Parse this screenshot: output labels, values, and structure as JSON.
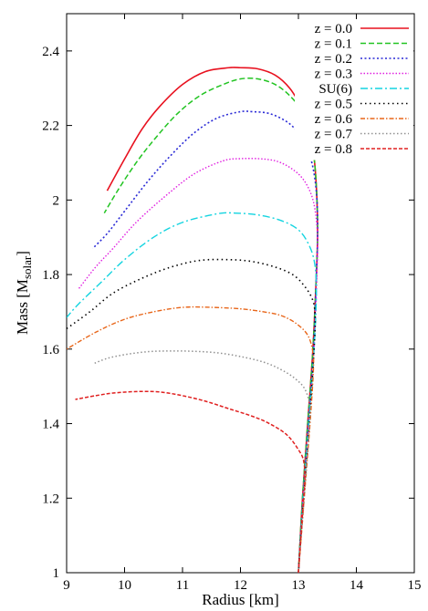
{
  "chart_data": {
    "type": "line",
    "title": "",
    "xlabel": "Radius  [km]",
    "ylabel_main": "Mass  [M",
    "ylabel_sub": "solar",
    "ylabel_close": "]",
    "xlim": [
      9,
      15
    ],
    "ylim": [
      1,
      2.5
    ],
    "xticks": [
      9,
      10,
      11,
      12,
      13,
      14,
      15
    ],
    "yticks": [
      1,
      1.2,
      1.4,
      1.6,
      1.8,
      2,
      2.2,
      2.4
    ],
    "xtick_labels": [
      "9",
      "10",
      "11",
      "12",
      "13",
      "14",
      "15"
    ],
    "ytick_labels": [
      "1",
      "1.2",
      "1.4",
      "1.6",
      "1.8",
      "2",
      "2.2",
      "2.4"
    ],
    "grid": false,
    "legend_position": "top-right",
    "series": [
      {
        "name": "z = 0.0",
        "color": "#e8111f",
        "dash": "",
        "width": 1.6,
        "x": [
          13.0,
          13.07,
          13.16,
          13.25,
          13.31,
          13.33,
          13.32,
          13.28,
          13.2,
          13.05,
          12.85,
          12.6,
          12.3,
          12.0,
          11.8,
          11.4,
          11.0,
          10.6,
          10.3,
          10.0,
          9.7
        ],
        "y": [
          1.0,
          1.2,
          1.4,
          1.6,
          1.8,
          1.9,
          2.0,
          2.1,
          2.2,
          2.25,
          2.3,
          2.335,
          2.352,
          2.355,
          2.355,
          2.345,
          2.31,
          2.25,
          2.19,
          2.11,
          2.025
        ]
      },
      {
        "name": "z = 0.1",
        "color": "#22c422",
        "dash": "6,3",
        "width": 1.5,
        "x": [
          13.0,
          13.07,
          13.16,
          13.25,
          13.31,
          13.33,
          13.32,
          13.28,
          13.2,
          13.05,
          12.85,
          12.6,
          12.3,
          12.0,
          11.7,
          11.3,
          10.9,
          10.5,
          10.2,
          9.9,
          9.65
        ],
        "y": [
          1.0,
          1.2,
          1.4,
          1.6,
          1.8,
          1.9,
          2.0,
          2.1,
          2.18,
          2.24,
          2.28,
          2.31,
          2.325,
          2.325,
          2.31,
          2.28,
          2.23,
          2.16,
          2.1,
          2.03,
          1.965
        ]
      },
      {
        "name": "z = 0.2",
        "color": "#2a2ad6",
        "dash": "2,2.5",
        "width": 1.6,
        "x": [
          13.0,
          13.08,
          13.17,
          13.26,
          13.31,
          13.33,
          13.32,
          13.26,
          13.15,
          13.0,
          12.8,
          12.5,
          12.2,
          12.0,
          11.6,
          11.2,
          10.8,
          10.4,
          10.0,
          9.7,
          9.45
        ],
        "y": [
          1.0,
          1.2,
          1.4,
          1.6,
          1.8,
          1.9,
          2.0,
          2.08,
          2.14,
          2.18,
          2.21,
          2.232,
          2.237,
          2.237,
          2.22,
          2.18,
          2.12,
          2.05,
          1.97,
          1.91,
          1.87
        ]
      },
      {
        "name": "z = 0.3",
        "color": "#e020e0",
        "dash": "1.5,2",
        "width": 1.4,
        "x": [
          13.0,
          13.08,
          13.18,
          13.27,
          13.32,
          13.33,
          13.28,
          13.18,
          13.0,
          12.7,
          12.4,
          12.0,
          11.7,
          11.2,
          10.7,
          10.2,
          9.8,
          9.5,
          9.2
        ],
        "y": [
          1.0,
          1.2,
          1.4,
          1.6,
          1.8,
          1.9,
          1.98,
          2.03,
          2.07,
          2.1,
          2.11,
          2.111,
          2.105,
          2.07,
          2.01,
          1.94,
          1.87,
          1.82,
          1.76
        ]
      },
      {
        "name": "SU(6)",
        "color": "#14d4e0",
        "dash": "8,3,2,3",
        "width": 1.4,
        "x": [
          13.0,
          13.08,
          13.18,
          13.27,
          13.31,
          13.28,
          13.18,
          13.0,
          12.7,
          12.3,
          11.9,
          11.6,
          11.0,
          10.5,
          10.0,
          9.6,
          9.2,
          9.0
        ],
        "y": [
          1.0,
          1.2,
          1.4,
          1.6,
          1.75,
          1.83,
          1.88,
          1.92,
          1.945,
          1.96,
          1.965,
          1.963,
          1.94,
          1.9,
          1.84,
          1.78,
          1.72,
          1.685
        ]
      },
      {
        "name": "z = 0.5",
        "color": "#000000",
        "dash": "1.5,3.5",
        "width": 1.6,
        "x": [
          13.0,
          13.09,
          13.19,
          13.27,
          13.29,
          13.25,
          13.1,
          12.9,
          12.6,
          12.2,
          11.8,
          11.3,
          10.8,
          10.3,
          9.8,
          9.4,
          9.0
        ],
        "y": [
          1.0,
          1.2,
          1.4,
          1.6,
          1.68,
          1.73,
          1.77,
          1.8,
          1.82,
          1.835,
          1.84,
          1.838,
          1.82,
          1.79,
          1.75,
          1.7,
          1.655
        ]
      },
      {
        "name": "z = 0.6",
        "color": "#e8661a",
        "dash": "5,2,1.5,2",
        "width": 1.4,
        "x": [
          13.0,
          13.1,
          13.2,
          13.26,
          13.24,
          13.15,
          12.95,
          12.7,
          12.4,
          12.0,
          11.5,
          11.0,
          10.5,
          10.0,
          9.5,
          9.0
        ],
        "y": [
          1.0,
          1.2,
          1.4,
          1.55,
          1.6,
          1.64,
          1.67,
          1.69,
          1.7,
          1.708,
          1.712,
          1.712,
          1.7,
          1.68,
          1.645,
          1.6
        ]
      },
      {
        "name": "z = 0.7",
        "color": "#909090",
        "dash": "1.5,2.5",
        "width": 1.5,
        "x": [
          13.0,
          13.1,
          13.18,
          13.2,
          13.12,
          12.95,
          12.7,
          12.4,
          12.0,
          11.6,
          11.2,
          10.8,
          10.4,
          10.0,
          9.7,
          9.45
        ],
        "y": [
          1.0,
          1.2,
          1.38,
          1.44,
          1.49,
          1.52,
          1.545,
          1.565,
          1.58,
          1.59,
          1.594,
          1.595,
          1.593,
          1.585,
          1.575,
          1.56
        ]
      },
      {
        "name": "z = 0.8",
        "color": "#e02020",
        "dash": "4,2",
        "width": 1.5,
        "x": [
          13.0,
          13.08,
          13.11,
          13.09,
          13.0,
          12.8,
          12.5,
          12.2,
          11.8,
          11.4,
          11.0,
          10.6,
          10.2,
          9.8,
          9.5,
          9.15
        ],
        "y": [
          1.0,
          1.18,
          1.25,
          1.3,
          1.33,
          1.37,
          1.4,
          1.42,
          1.44,
          1.46,
          1.475,
          1.485,
          1.486,
          1.482,
          1.475,
          1.465
        ]
      }
    ]
  }
}
